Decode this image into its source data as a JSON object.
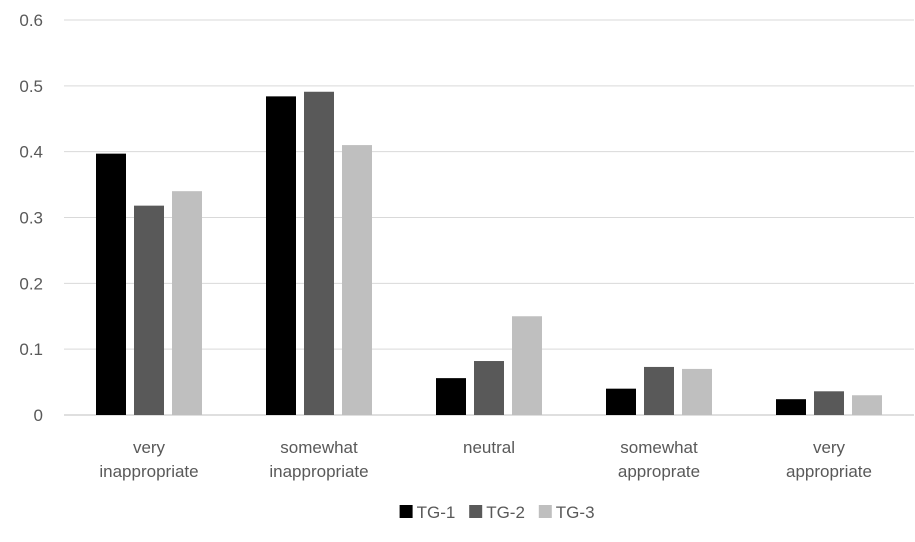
{
  "chart_data": {
    "type": "bar",
    "categories": [
      [
        "very",
        "inappropriate"
      ],
      [
        "somewhat",
        "inappropriate"
      ],
      [
        "neutral"
      ],
      [
        "somewhat",
        "approprate"
      ],
      [
        "very",
        "appropriate"
      ]
    ],
    "series": [
      {
        "name": "TG-1",
        "color": "#000000",
        "values": [
          0.397,
          0.484,
          0.056,
          0.04,
          0.024
        ]
      },
      {
        "name": "TG-2",
        "color": "#595959",
        "values": [
          0.318,
          0.491,
          0.082,
          0.073,
          0.036
        ]
      },
      {
        "name": "TG-3",
        "color": "#bfbfbf",
        "values": [
          0.34,
          0.41,
          0.15,
          0.07,
          0.03
        ]
      }
    ],
    "ylim": [
      0,
      0.6
    ],
    "yticks": [
      "0",
      "0.1",
      "0.2",
      "0.3",
      "0.4",
      "0.5",
      "0.6"
    ],
    "grid": true,
    "legend_position": "bottom-center"
  }
}
